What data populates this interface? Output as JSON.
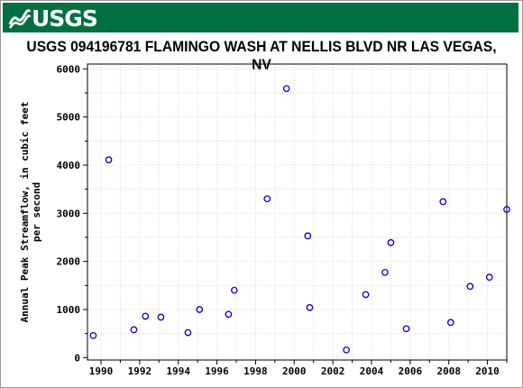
{
  "header": {
    "agency": "USGS",
    "title": "USGS 094196781 FLAMINGO WASH AT NELLIS BLVD NR LAS VEGAS, NV",
    "banner_color": "#006f41"
  },
  "chart_data": {
    "type": "scatter",
    "title": "USGS 094196781 FLAMINGO WASH AT NELLIS BLVD NR LAS VEGAS, NV",
    "xlabel": "",
    "ylabel_lines": [
      "Annual Peak Streamflow, in cubic feet",
      "per second"
    ],
    "xlim": [
      1989.3,
      2011.0
    ],
    "ylim": [
      -50,
      6100
    ],
    "x_ticks": [
      1990,
      1992,
      1994,
      1996,
      1998,
      2000,
      2002,
      2004,
      2006,
      2008,
      2010
    ],
    "y_ticks": [
      0,
      1000,
      2000,
      3000,
      4000,
      5000,
      6000
    ],
    "marker_color": "#0000cc",
    "grid": true,
    "points": [
      {
        "x": 1989.6,
        "y": 460
      },
      {
        "x": 1990.4,
        "y": 4110
      },
      {
        "x": 1991.7,
        "y": 580
      },
      {
        "x": 1992.3,
        "y": 860
      },
      {
        "x": 1993.1,
        "y": 840
      },
      {
        "x": 1994.5,
        "y": 520
      },
      {
        "x": 1995.1,
        "y": 1000
      },
      {
        "x": 1996.6,
        "y": 900
      },
      {
        "x": 1996.9,
        "y": 1400
      },
      {
        "x": 1998.6,
        "y": 3300
      },
      {
        "x": 1999.6,
        "y": 5590
      },
      {
        "x": 2000.7,
        "y": 2530
      },
      {
        "x": 2000.8,
        "y": 1040
      },
      {
        "x": 2002.7,
        "y": 160
      },
      {
        "x": 2003.7,
        "y": 1310
      },
      {
        "x": 2004.7,
        "y": 1770
      },
      {
        "x": 2005.0,
        "y": 2390
      },
      {
        "x": 2005.8,
        "y": 600
      },
      {
        "x": 2007.7,
        "y": 3240
      },
      {
        "x": 2008.1,
        "y": 730
      },
      {
        "x": 2009.1,
        "y": 1480
      },
      {
        "x": 2010.1,
        "y": 1670
      },
      {
        "x": 2011.0,
        "y": 3080
      }
    ]
  }
}
